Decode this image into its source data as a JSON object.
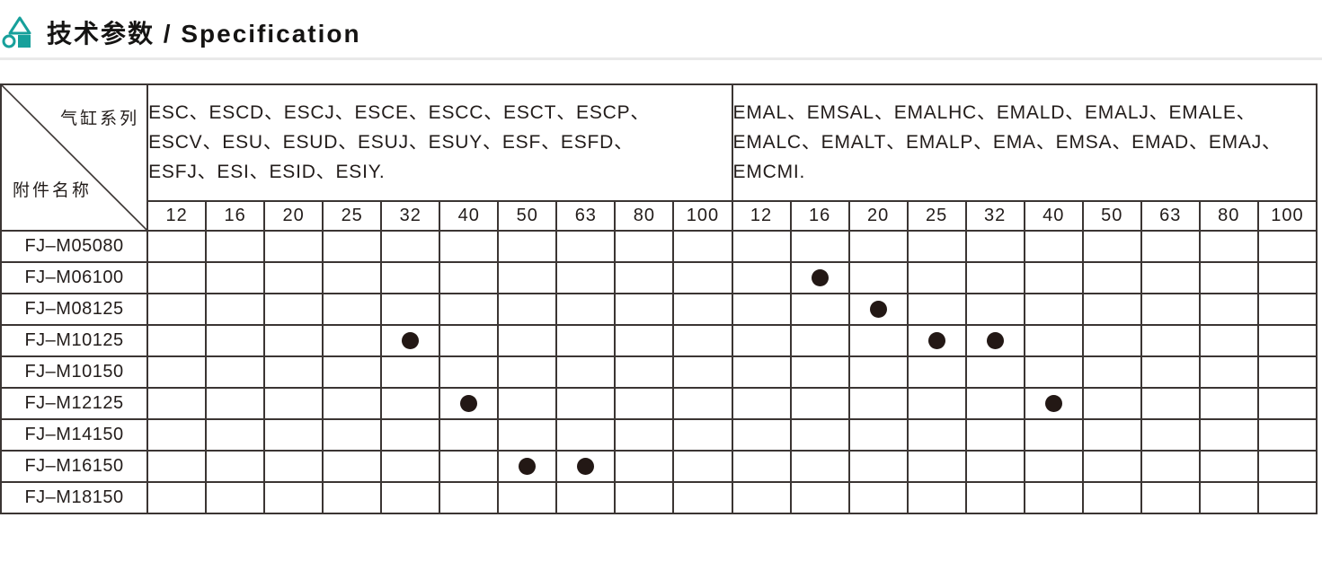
{
  "page": {
    "title": "技术参数 / Specification",
    "accent_color": "#17a09b"
  },
  "table": {
    "corner": {
      "series_label": "气缸系列",
      "accessory_label": "附件名称"
    },
    "groups": [
      {
        "series": "ESC、ESCD、ESCJ、ESCE、ESCC、ESCT、ESCP、\nESCV、ESU、ESUD、ESUJ、ESUY、ESF、ESFD、\nESFJ、ESI、ESID、ESIY.",
        "bore_sizes": [
          "12",
          "16",
          "20",
          "25",
          "32",
          "40",
          "50",
          "63",
          "80",
          "100"
        ]
      },
      {
        "series": "EMAL、EMSAL、EMALHC、EMALD、EMALJ、EMALE、\nEMALC、EMALT、EMALP、EMA、EMSA、EMAD、EMAJ、\nEMCMI.",
        "bore_sizes": [
          "12",
          "16",
          "20",
          "25",
          "32",
          "40",
          "50",
          "63",
          "80",
          "100"
        ]
      }
    ],
    "rows": [
      {
        "label": "FJ–M05080",
        "marks": [
          [],
          []
        ]
      },
      {
        "label": "FJ–M06100",
        "marks": [
          [],
          [
            "16"
          ]
        ]
      },
      {
        "label": "FJ–M08125",
        "marks": [
          [],
          [
            "20"
          ]
        ]
      },
      {
        "label": "FJ–M10125",
        "marks": [
          [
            "32"
          ],
          [
            "25",
            "32"
          ]
        ]
      },
      {
        "label": "FJ–M10150",
        "marks": [
          [],
          []
        ]
      },
      {
        "label": "FJ–M12125",
        "marks": [
          [
            "40"
          ],
          [
            "40"
          ]
        ]
      },
      {
        "label": "FJ–M14150",
        "marks": [
          [],
          []
        ]
      },
      {
        "label": "FJ–M16150",
        "marks": [
          [
            "50",
            "63"
          ],
          []
        ]
      },
      {
        "label": "FJ–M18150",
        "marks": [
          [],
          []
        ]
      }
    ],
    "mark_symbol": "dot"
  }
}
